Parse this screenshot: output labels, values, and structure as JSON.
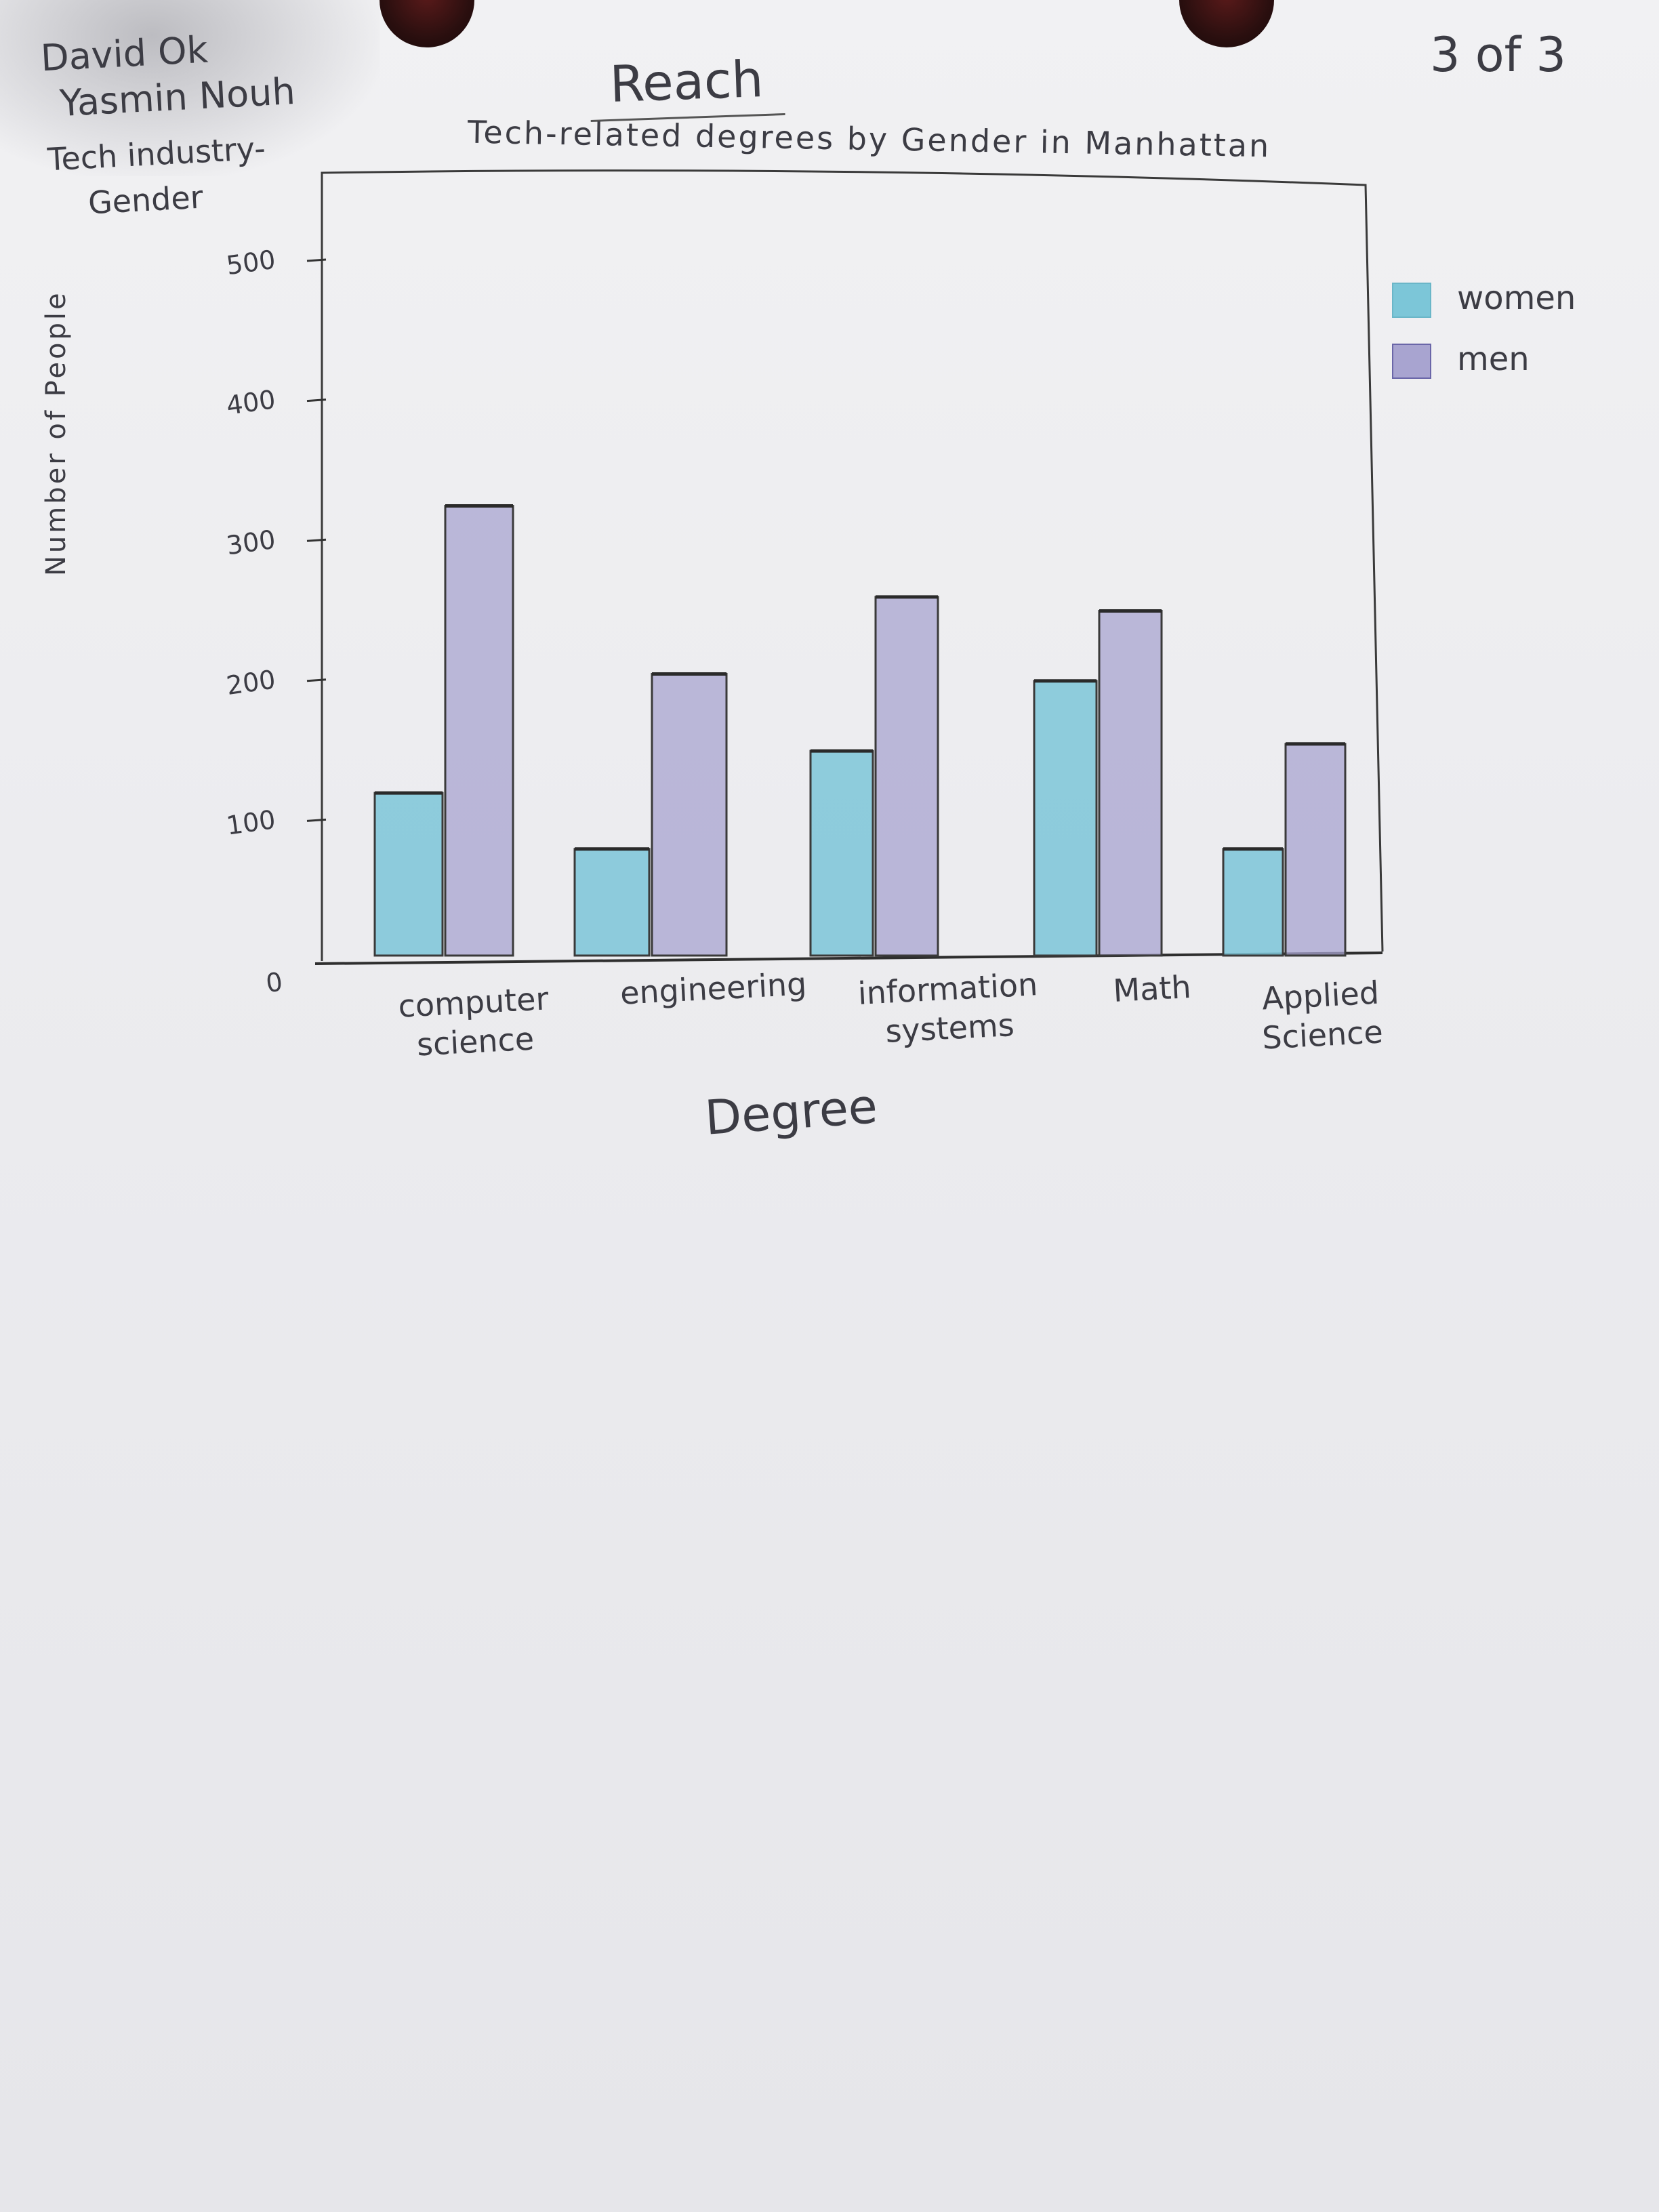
{
  "header": {
    "authors": [
      "David Ok",
      "Yasmin Nouh"
    ],
    "topic_line1": "Tech industry-",
    "topic_line2": "Gender",
    "page_number": "3 of 3"
  },
  "chart_data": {
    "type": "bar",
    "title": "Reach",
    "subtitle": "Tech-related degrees by Gender in Manhattan",
    "xlabel": "Degree",
    "ylabel": "Number of People",
    "categories": [
      "computer science",
      "engineering",
      "information systems",
      "Math",
      "Applied Science"
    ],
    "series": [
      {
        "name": "women",
        "values": [
          120,
          80,
          150,
          200,
          80
        ],
        "color": "#7cc6d8"
      },
      {
        "name": "men",
        "values": [
          325,
          205,
          260,
          250,
          155
        ],
        "color": "#a8a4d0"
      }
    ],
    "ylim": [
      0,
      550
    ],
    "yticks": [
      0,
      100,
      200,
      300,
      400,
      500
    ],
    "grid": false,
    "legend": "right"
  }
}
